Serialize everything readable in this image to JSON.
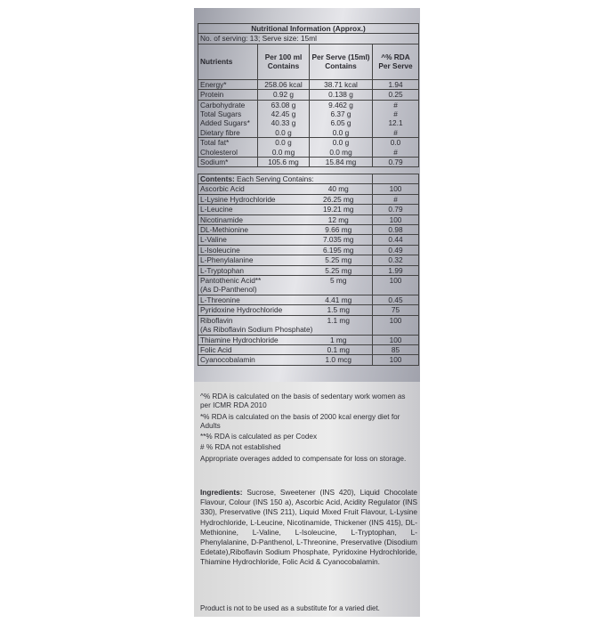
{
  "title": "Nutritional Information (Approx.)",
  "serving": "No. of serving: 13; Serve size: 15ml",
  "headers": [
    "Nutrients",
    "Per 100 ml Contains",
    "Per Serve (15ml) Contains",
    "^% RDA Per Serve"
  ],
  "nutrients": [
    {
      "name": "Energy*",
      "per100": "258.06 kcal",
      "serve": "38.71 kcal",
      "rda": "1.94"
    },
    {
      "name": "Protein",
      "per100": "0.92 g",
      "serve": "0.138 g",
      "rda": "0.25"
    },
    {
      "name": "Carbohydrate",
      "per100": "63.08 g",
      "serve": "9.462 g",
      "rda": "#"
    },
    {
      "name": "Total Sugars",
      "per100": "42.45 g",
      "serve": "6.37 g",
      "rda": "#"
    },
    {
      "name": "Added Sugars*",
      "per100": "40.33 g",
      "serve": "6.05 g",
      "rda": "12.1"
    },
    {
      "name": "Dietary fibre",
      "per100": "0.0 g",
      "serve": "0.0 g",
      "rda": "#"
    },
    {
      "name": "Total fat*",
      "per100": "0.0 g",
      "serve": "0.0 g",
      "rda": "0.0"
    },
    {
      "name": "Cholesterol",
      "per100": "0.0 mg",
      "serve": "0.0 mg",
      "rda": "#"
    },
    {
      "name": "Sodium*",
      "per100": "105.6 mg",
      "serve": "15.84 mg",
      "rda": "0.79"
    }
  ],
  "contents_label": "Contents:",
  "contents_sub": "Each Serving Contains:",
  "contents": [
    {
      "name": "Ascorbic Acid",
      "amount": "40 mg",
      "rda": "100"
    },
    {
      "name": "L-Lysine Hydrochloride",
      "amount": "26.25 mg",
      "rda": "#"
    },
    {
      "name": "L-Leucine",
      "amount": "19.21 mg",
      "rda": "0.79"
    },
    {
      "name": "Nicotinamide",
      "amount": "12 mg",
      "rda": "100"
    },
    {
      "name": "DL-Methionine",
      "amount": "9.66 mg",
      "rda": "0.98"
    },
    {
      "name": "L-Valine",
      "amount": "7.035 mg",
      "rda": "0.44"
    },
    {
      "name": "L-Isoleucine",
      "amount": "6.195 mg",
      "rda": "0.49"
    },
    {
      "name": "L-Phenylalanine",
      "amount": "5.25 mg",
      "rda": "0.32"
    },
    {
      "name": "L-Tryptophan",
      "amount": "5.25 mg",
      "rda": "1.99"
    },
    {
      "name": "Pantothenic Acid**",
      "sub": "(As D-Panthenol)",
      "amount": "5 mg",
      "rda": "100"
    },
    {
      "name": "L-Threonine",
      "amount": "4.41 mg",
      "rda": "0.45"
    },
    {
      "name": "Pyridoxine Hydrochloride",
      "amount": "1.5 mg",
      "rda": "75"
    },
    {
      "name": "Riboflavin",
      "sub": "(As Riboflavin Sodium Phosphate)",
      "amount": "1.1 mg",
      "rda": "100"
    },
    {
      "name": "Thiamine Hydrochloride",
      "amount": "1 mg",
      "rda": "100"
    },
    {
      "name": "Folic Acid",
      "amount": "0.1 mg",
      "rda": "85"
    },
    {
      "name": "Cyanocobalamin",
      "amount": "1.0 mcg",
      "rda": "100"
    }
  ],
  "notes": [
    "^% RDA is calculated on the basis of sedentary work women as per ICMR RDA 2010",
    "*% RDA is calculated on the basis of 2000 kcal energy diet for Adults",
    "**% RDA is calculated as per Codex",
    "# % RDA not established",
    "Appropriate overages added to compensate for loss on storage."
  ],
  "ingredients_label": "Ingredients:",
  "ingredients": "Sucrose, Sweetener (INS 420), Liquid Chocolate Flavour, Colour (INS 150 a), Ascorbic Acid, Acidity Regulator (INS 330), Preservative (INS 211), Liquid Mixed Fruit Flavour, L-Lysine Hydrochloride, L-Leucine, Nicotinamide, Thickener (INS 415), DL-Methionine, L-Valine, L-Isoleucine, L-Tryptophan, L-Phenylalanine, D-Panthenol, L-Threonine, Preservative (Disodium Edetate),Riboflavin Sodium Phosphate, Pyridoxine Hydrochloride, Thiamine Hydrochloride, Folic Acid & Cyanocobalamin.",
  "disclaimer": "Product is not to be used as a substitute for a varied diet."
}
